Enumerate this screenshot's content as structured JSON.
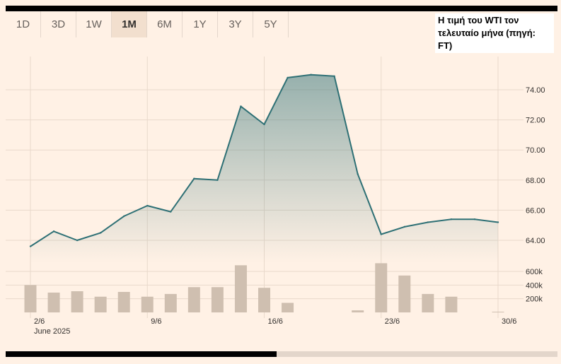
{
  "range_tabs": [
    {
      "label": "1D",
      "active": false
    },
    {
      "label": "3D",
      "active": false
    },
    {
      "label": "1W",
      "active": false
    },
    {
      "label": "1M",
      "active": true
    },
    {
      "label": "6M",
      "active": false
    },
    {
      "label": "1Y",
      "active": false
    },
    {
      "label": "3Y",
      "active": false
    },
    {
      "label": "5Y",
      "active": false
    }
  ],
  "caption": "Η τιμή του WTI τον τελευταίο μήνα (πηγή: FT)",
  "colors": {
    "background": "#fff1e5",
    "line": "#2e7075",
    "bar": "#cfbfb0",
    "grid": "#e9d9cb"
  },
  "chart_data": {
    "type": "line",
    "x": [
      "2/6",
      "3/6",
      "4/6",
      "5/6",
      "6/6",
      "9/6",
      "10/6",
      "11/6",
      "12/6",
      "13/6",
      "16/6",
      "17/6",
      "18/6",
      "19/6",
      "20/6",
      "23/6",
      "24/6",
      "25/6",
      "26/6",
      "27/6",
      "30/6"
    ],
    "price": [
      63.6,
      64.6,
      64.0,
      64.5,
      65.6,
      66.3,
      65.9,
      68.1,
      68.0,
      72.9,
      71.7,
      74.8,
      75.0,
      74.9,
      68.4,
      64.4,
      64.9,
      65.2,
      65.4,
      65.4,
      65.2
    ],
    "volume": [
      400000,
      290000,
      310000,
      230000,
      300000,
      230000,
      270000,
      370000,
      370000,
      690000,
      360000,
      140000,
      0,
      0,
      30000,
      720000,
      540000,
      270000,
      230000,
      0,
      10000
    ],
    "x_tick_labels": [
      "2/6",
      "9/6",
      "16/6",
      "23/6",
      "30/6"
    ],
    "x_sublabel": "June 2025",
    "price_ticks": [
      "74.00",
      "72.00",
      "70.00",
      "68.00",
      "66.00",
      "64.00"
    ],
    "price_tick_values": [
      74,
      72,
      70,
      68,
      66,
      64
    ],
    "volume_ticks": [
      "600k",
      "400k",
      "200k"
    ],
    "volume_tick_values": [
      600000,
      400000,
      200000
    ],
    "ylim": [
      62.5,
      75.5
    ],
    "volume_lim": [
      0,
      600000
    ],
    "grid": true,
    "area_fill": true
  },
  "scrollbar": {
    "position": 0.49
  }
}
